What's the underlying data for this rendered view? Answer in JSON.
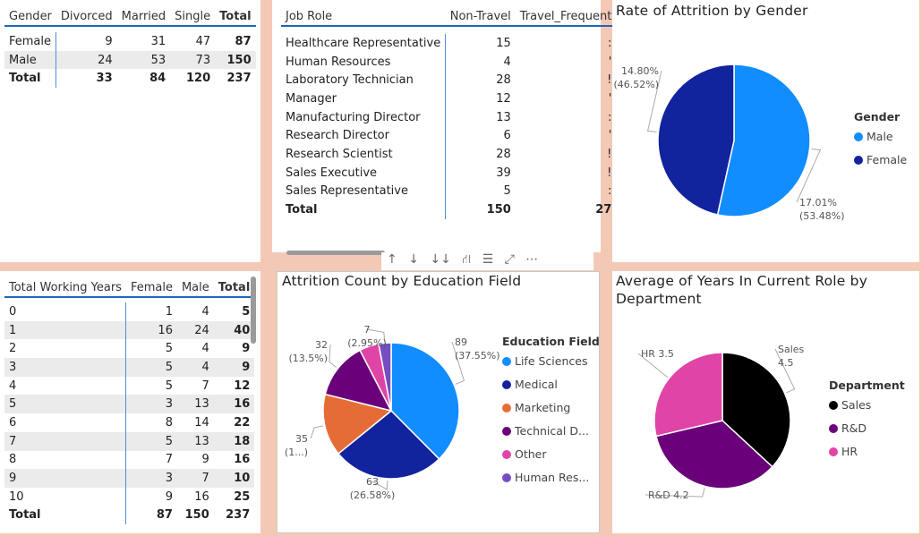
{
  "gender_marital_matrix": {
    "headers": [
      "Gender",
      "Divorced",
      "Married",
      "Single",
      "Total"
    ],
    "rows": [
      {
        "label": "Female",
        "divorced": "9",
        "married": "31",
        "single": "47",
        "total": "87"
      },
      {
        "label": "Male",
        "divorced": "24",
        "married": "53",
        "single": "73",
        "total": "150"
      }
    ],
    "total_row": {
      "label": "Total",
      "divorced": "33",
      "married": "84",
      "single": "120",
      "total": "237"
    }
  },
  "job_role_matrix": {
    "headers": [
      "Job Role",
      "Non-Travel",
      "Travel_Frequent"
    ],
    "rows": [
      {
        "label": "Healthcare Representative",
        "non_travel": "15"
      },
      {
        "label": "Human Resources",
        "non_travel": "4"
      },
      {
        "label": "Laboratory Technician",
        "non_travel": "28"
      },
      {
        "label": "Manager",
        "non_travel": "12"
      },
      {
        "label": "Manufacturing Director",
        "non_travel": "13"
      },
      {
        "label": "Research Director",
        "non_travel": "6"
      },
      {
        "label": "Research Scientist",
        "non_travel": "28"
      },
      {
        "label": "Sales Executive",
        "non_travel": "39"
      },
      {
        "label": "Sales Representative",
        "non_travel": "5"
      }
    ],
    "total_row": {
      "label": "Total",
      "non_travel": "150",
      "travel_frequent": "27"
    },
    "toolbar": [
      "↑",
      "↓",
      "↓↓",
      "⛙",
      "☰",
      "⤢",
      "⋯"
    ]
  },
  "working_years_matrix": {
    "headers": [
      "Total Working Years",
      "Female",
      "Male",
      "Total"
    ],
    "rows": [
      {
        "label": "0",
        "female": "1",
        "male": "4",
        "total": "5"
      },
      {
        "label": "1",
        "female": "16",
        "male": "24",
        "total": "40"
      },
      {
        "label": "2",
        "female": "5",
        "male": "4",
        "total": "9"
      },
      {
        "label": "3",
        "female": "5",
        "male": "4",
        "total": "9"
      },
      {
        "label": "4",
        "female": "5",
        "male": "7",
        "total": "12"
      },
      {
        "label": "5",
        "female": "3",
        "male": "13",
        "total": "16"
      },
      {
        "label": "6",
        "female": "8",
        "male": "14",
        "total": "22"
      },
      {
        "label": "7",
        "female": "5",
        "male": "13",
        "total": "18"
      },
      {
        "label": "8",
        "female": "7",
        "male": "9",
        "total": "16"
      },
      {
        "label": "9",
        "female": "3",
        "male": "7",
        "total": "10"
      },
      {
        "label": "10",
        "female": "9",
        "male": "16",
        "total": "25"
      }
    ],
    "total_row": {
      "label": "Total",
      "female": "87",
      "male": "150",
      "total": "237"
    }
  },
  "chart_data": [
    {
      "type": "pie",
      "title": "Rate of Attrition by Gender",
      "legend_title": "Gender",
      "legend_position": "right",
      "slices": [
        {
          "name": "Male",
          "value": 17.01,
          "pct": 53.48,
          "color": "#118dff",
          "label": "17.01%",
          "label2": "(53.48%)"
        },
        {
          "name": "Female",
          "value": 14.8,
          "pct": 46.52,
          "color": "#12239e",
          "label": "14.80%",
          "label2": "(46.52%)"
        }
      ]
    },
    {
      "type": "pie",
      "title": "Attrition Count by Education Field",
      "legend_title": "Education Field",
      "legend_position": "right",
      "slices": [
        {
          "name": "Life Sciences",
          "value": 89,
          "color": "#118dff",
          "label": "89",
          "label2": "(37.55%)"
        },
        {
          "name": "Medical",
          "value": 63,
          "color": "#12239e",
          "label": "63",
          "label2": "(26.58%)"
        },
        {
          "name": "Marketing",
          "value": 35,
          "color": "#e66c37",
          "label": "35",
          "label2": "(1...)"
        },
        {
          "name": "Technical D...",
          "value": 32,
          "color": "#6b007b",
          "label": "32",
          "label2": "(13.5%)"
        },
        {
          "name": "Other",
          "value": 11,
          "color": "#e044a7",
          "label": "",
          "label2": ""
        },
        {
          "name": "Human Res...",
          "value": 7,
          "color": "#744ec2",
          "label": "7",
          "label2": "(2.95%)"
        }
      ]
    },
    {
      "type": "pie",
      "title": "Average of Years In Current Role by Department",
      "legend_title": "Department",
      "legend_position": "right",
      "slices": [
        {
          "name": "Sales",
          "value": 4.5,
          "color": "#000000",
          "label": "Sales",
          "label2": "4.5"
        },
        {
          "name": "R&D",
          "value": 4.2,
          "color": "#6b007b",
          "label": "R&D 4.2",
          "label2": ""
        },
        {
          "name": "HR",
          "value": 3.5,
          "color": "#e044a7",
          "label": "HR 3.5",
          "label2": ""
        }
      ]
    }
  ]
}
